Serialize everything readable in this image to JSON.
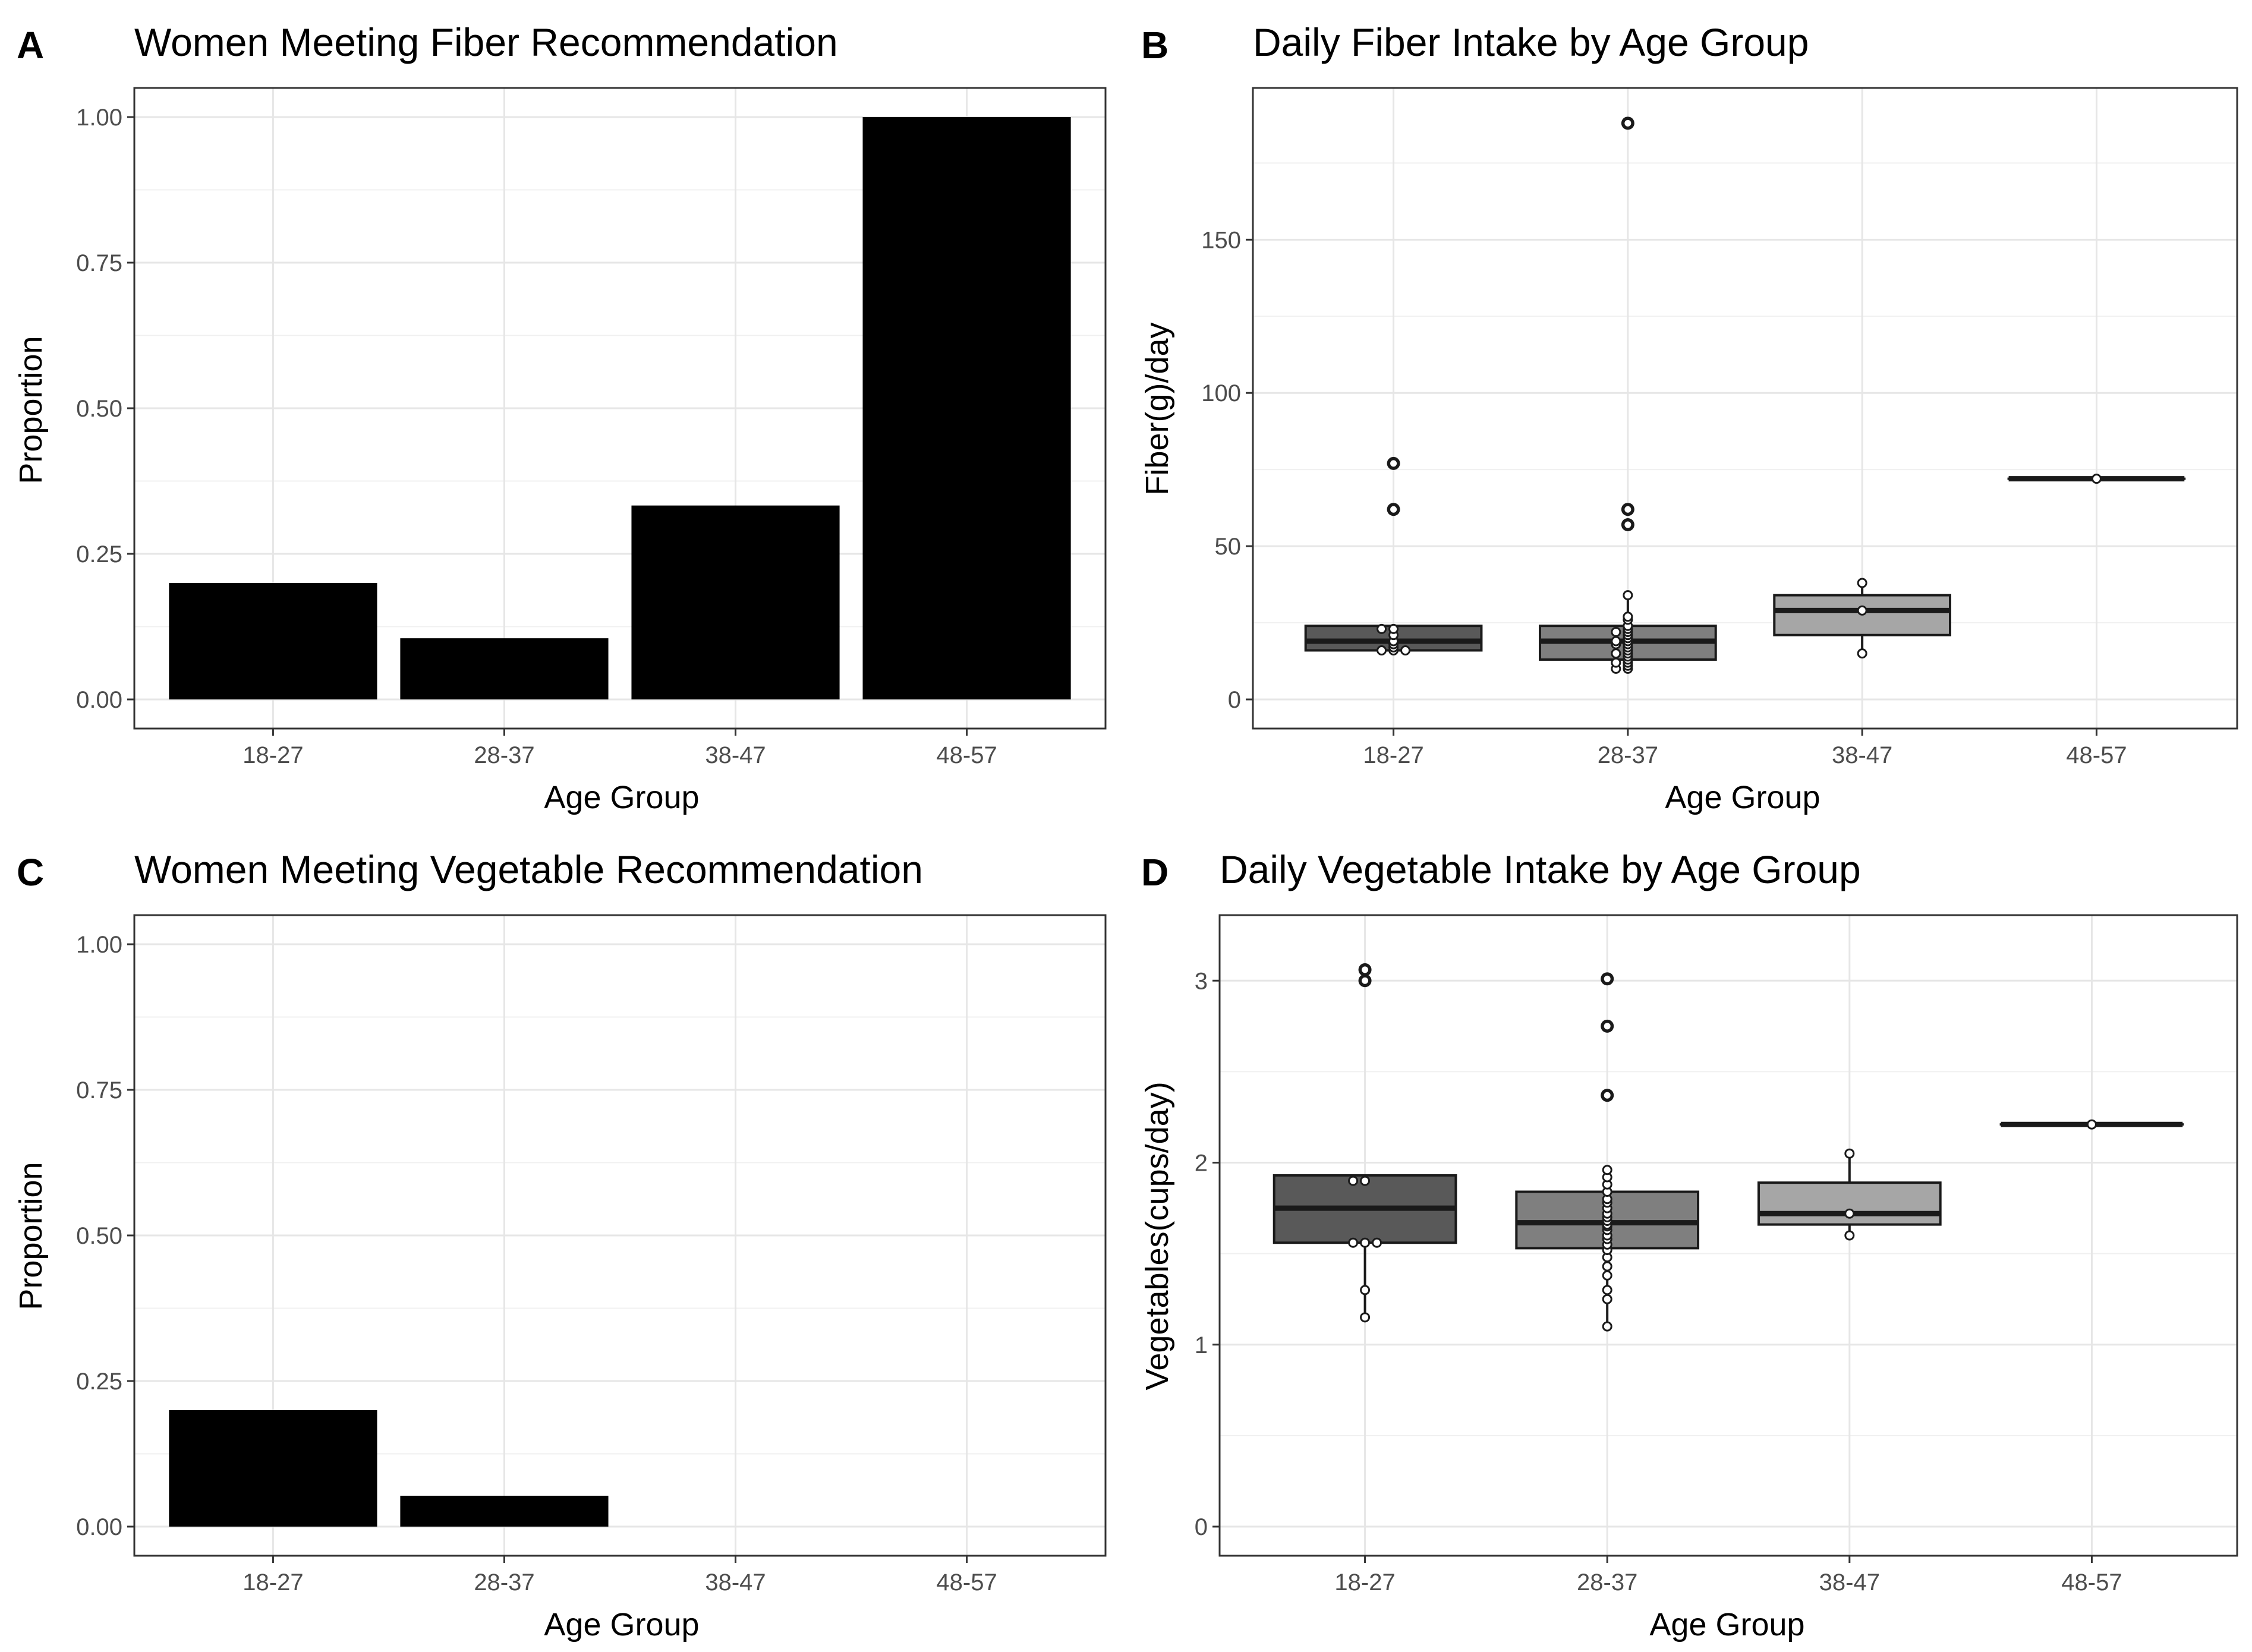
{
  "chart_data": [
    {
      "panel_label": "A",
      "type": "bar",
      "title": "Women Meeting Fiber Recommendation",
      "xlabel": "Age Group",
      "ylabel": "Proportion",
      "categories": [
        "18-27",
        "28-37",
        "38-47",
        "48-57"
      ],
      "values": [
        0.2,
        0.105,
        0.333,
        1.0
      ],
      "ylim": [
        0,
        1.0
      ],
      "yticks": [
        "0.00",
        "0.25",
        "0.50",
        "0.75",
        "1.00"
      ],
      "bar_color": "#000000",
      "grid": true
    },
    {
      "panel_label": "B",
      "type": "box",
      "title": "Daily Fiber Intake by Age Group",
      "xlabel": "Age Group",
      "ylabel": "Fiber(g)/day",
      "categories": [
        "18-27",
        "28-37",
        "38-47",
        "48-57"
      ],
      "ylim": [
        0,
        190
      ],
      "yticks": [
        "0",
        "50",
        "100",
        "150"
      ],
      "grid": true,
      "groups": [
        {
          "category": "18-27",
          "fill": "#595959",
          "q1": 16,
          "median": 19,
          "q3": 24,
          "whisker_low": 16,
          "whisker_high": 24,
          "outliers": [
            77,
            62
          ],
          "points": [
            16,
            16,
            16,
            17,
            18,
            19,
            21,
            23,
            23,
            62,
            77
          ]
        },
        {
          "category": "28-37",
          "fill": "#7f7f7f",
          "q1": 13,
          "median": 19,
          "q3": 24,
          "whisker_low": 10,
          "whisker_high": 34,
          "outliers": [
            188,
            62,
            57
          ],
          "points": [
            10,
            10,
            11,
            12,
            12,
            13,
            14,
            15,
            15,
            16,
            17,
            18,
            18,
            19,
            19,
            20,
            21,
            22,
            22,
            23,
            24,
            26,
            27,
            34,
            57,
            62,
            188
          ]
        },
        {
          "category": "38-47",
          "fill": "#a6a6a6",
          "q1": 21,
          "median": 29,
          "q3": 34,
          "whisker_low": 15,
          "whisker_high": 38,
          "outliers": [],
          "points": [
            15,
            29,
            38
          ]
        },
        {
          "category": "48-57",
          "fill": "#cccccc",
          "q1": 72,
          "median": 72,
          "q3": 72,
          "whisker_low": 72,
          "whisker_high": 72,
          "outliers": [],
          "points": [
            72
          ]
        }
      ]
    },
    {
      "panel_label": "C",
      "type": "bar",
      "title": "Women Meeting Vegetable Recommendation",
      "xlabel": "Age Group",
      "ylabel": "Proportion",
      "categories": [
        "18-27",
        "28-37",
        "38-47",
        "48-57"
      ],
      "values": [
        0.2,
        0.053,
        0,
        0
      ],
      "ylim": [
        0,
        1.0
      ],
      "yticks": [
        "0.00",
        "0.25",
        "0.50",
        "0.75",
        "1.00"
      ],
      "bar_color": "#000000",
      "grid": true
    },
    {
      "panel_label": "D",
      "type": "box",
      "title": "Daily Vegetable Intake by Age Group",
      "xlabel": "Age Group",
      "ylabel": "Vegetables(cups/day)",
      "categories": [
        "18-27",
        "28-37",
        "38-47",
        "48-57"
      ],
      "ylim": [
        0,
        3.2
      ],
      "yticks": [
        "0",
        "1",
        "2",
        "3"
      ],
      "grid": true,
      "groups": [
        {
          "category": "18-27",
          "fill": "#595959",
          "q1": 1.56,
          "median": 1.75,
          "q3": 1.93,
          "whisker_low": 1.15,
          "whisker_high": 1.93,
          "outliers": [
            3.06,
            3.0
          ],
          "points": [
            1.15,
            1.3,
            1.56,
            1.56,
            1.56,
            1.9,
            1.9,
            3.0,
            3.06
          ]
        },
        {
          "category": "28-37",
          "fill": "#7f7f7f",
          "q1": 1.53,
          "median": 1.67,
          "q3": 1.84,
          "whisker_low": 1.1,
          "whisker_high": 1.96,
          "outliers": [
            3.01,
            2.75,
            2.37
          ],
          "points": [
            1.1,
            1.25,
            1.3,
            1.38,
            1.43,
            1.48,
            1.52,
            1.55,
            1.58,
            1.6,
            1.63,
            1.65,
            1.66,
            1.68,
            1.7,
            1.72,
            1.75,
            1.78,
            1.8,
            1.84,
            1.88,
            1.92,
            1.96,
            2.37,
            2.75,
            3.01
          ]
        },
        {
          "category": "38-47",
          "fill": "#a6a6a6",
          "q1": 1.66,
          "median": 1.72,
          "q3": 1.89,
          "whisker_low": 1.6,
          "whisker_high": 2.05,
          "outliers": [],
          "points": [
            1.6,
            1.72,
            2.05
          ]
        },
        {
          "category": "48-57",
          "fill": "#cccccc",
          "q1": 2.21,
          "median": 2.21,
          "q3": 2.21,
          "whisker_low": 2.21,
          "whisker_high": 2.21,
          "outliers": [],
          "points": [
            2.21
          ]
        }
      ]
    }
  ]
}
